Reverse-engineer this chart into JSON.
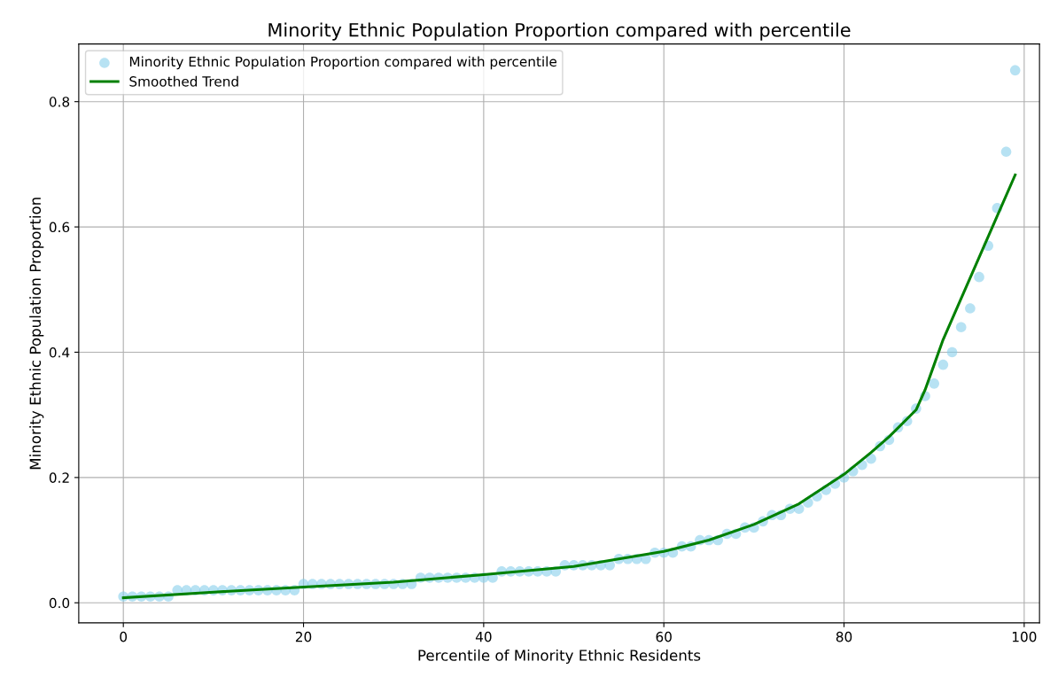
{
  "chart_data": {
    "type": "scatter",
    "title": "Minority Ethnic Population Proportion compared with percentile",
    "xlabel": "Percentile of Minority Ethnic Residents",
    "ylabel": "Minority Ethnic Population Proportion",
    "xlim": [
      -4.95,
      101.7
    ],
    "ylim": [
      -0.032,
      0.892
    ],
    "xticks": [
      0,
      20,
      40,
      60,
      80,
      100
    ],
    "yticks": [
      {
        "value": 0,
        "label": "0.0"
      },
      {
        "value": 0.2,
        "label": "0.2"
      },
      {
        "value": 0.4,
        "label": "0.4"
      },
      {
        "value": 0.6,
        "label": "0.6"
      },
      {
        "value": 0.8,
        "label": "0.8"
      }
    ],
    "grid": true,
    "legend": "top left",
    "series": [
      {
        "name": "Minority Ethnic Population Proportion compared with percentile",
        "color": "#87ceeb",
        "marker": "circle",
        "x": [
          0,
          1,
          2,
          3,
          4,
          5,
          6,
          7,
          8,
          9,
          10,
          11,
          12,
          13,
          14,
          15,
          16,
          17,
          18,
          19,
          20,
          21,
          22,
          23,
          24,
          25,
          26,
          27,
          28,
          29,
          30,
          31,
          32,
          33,
          34,
          35,
          36,
          37,
          38,
          39,
          40,
          41,
          42,
          43,
          44,
          45,
          46,
          47,
          48,
          49,
          50,
          51,
          52,
          53,
          54,
          55,
          56,
          57,
          58,
          59,
          60,
          61,
          62,
          63,
          64,
          65,
          66,
          67,
          68,
          69,
          70,
          71,
          72,
          73,
          74,
          75,
          76,
          77,
          78,
          79,
          80,
          81,
          82,
          83,
          84,
          85,
          86,
          87,
          88,
          89,
          90,
          91,
          92,
          93,
          94,
          95,
          96,
          97,
          98,
          99
        ],
        "values": [
          0.01,
          0.01,
          0.01,
          0.01,
          0.01,
          0.01,
          0.02,
          0.02,
          0.02,
          0.02,
          0.02,
          0.02,
          0.02,
          0.02,
          0.02,
          0.02,
          0.02,
          0.02,
          0.02,
          0.02,
          0.03,
          0.03,
          0.03,
          0.03,
          0.03,
          0.03,
          0.03,
          0.03,
          0.03,
          0.03,
          0.03,
          0.03,
          0.03,
          0.04,
          0.04,
          0.04,
          0.04,
          0.04,
          0.04,
          0.04,
          0.04,
          0.04,
          0.05,
          0.05,
          0.05,
          0.05,
          0.05,
          0.05,
          0.05,
          0.06,
          0.06,
          0.06,
          0.06,
          0.06,
          0.06,
          0.07,
          0.07,
          0.07,
          0.07,
          0.08,
          0.08,
          0.08,
          0.09,
          0.09,
          0.1,
          0.1,
          0.1,
          0.11,
          0.11,
          0.12,
          0.12,
          0.13,
          0.14,
          0.14,
          0.15,
          0.15,
          0.16,
          0.17,
          0.18,
          0.19,
          0.2,
          0.21,
          0.22,
          0.23,
          0.25,
          0.26,
          0.28,
          0.29,
          0.31,
          0.33,
          0.35,
          0.38,
          0.4,
          0.44,
          0.47,
          0.52,
          0.57,
          0.63,
          0.72,
          0.85
        ]
      },
      {
        "name": "Smoothed Trend",
        "type": "line",
        "color": "#008000",
        "marker": "none",
        "line_style": "solid",
        "x": [
          0,
          10,
          20,
          30,
          40,
          50,
          60,
          65,
          70,
          75,
          80,
          83,
          85,
          88,
          89,
          90,
          91,
          99
        ],
        "values": [
          0.008,
          0.017,
          0.025,
          0.033,
          0.045,
          0.058,
          0.082,
          0.1,
          0.125,
          0.158,
          0.205,
          0.24,
          0.265,
          0.308,
          0.34,
          0.38,
          0.42,
          0.683
        ]
      }
    ]
  }
}
